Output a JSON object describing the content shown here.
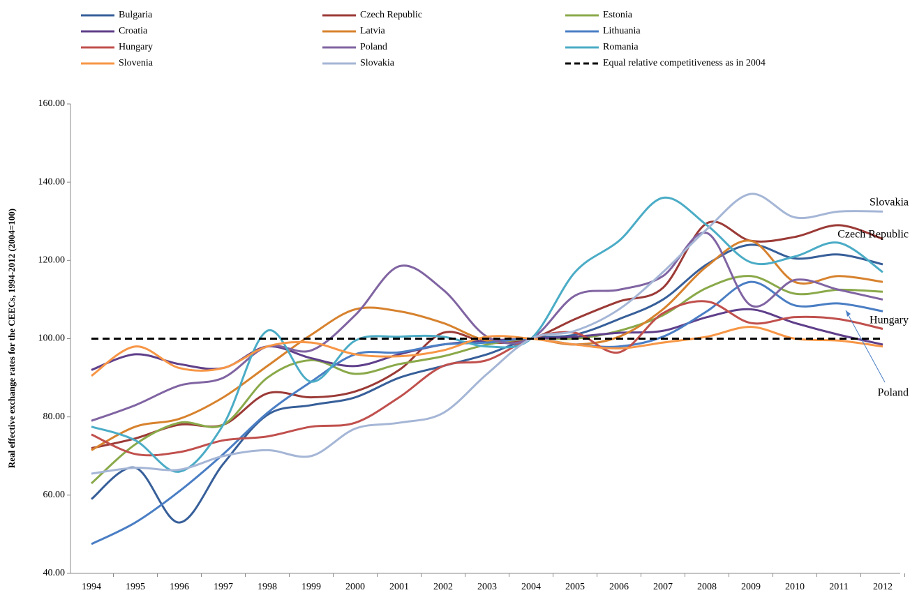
{
  "chart_data": {
    "type": "line",
    "y_label": "Real effective exchange rates for the CEECs, 1994-2012 (2004=100)",
    "categories": [
      "1994",
      "1995",
      "1996",
      "1997",
      "1998",
      "1999",
      "2000",
      "2001",
      "2002",
      "2003",
      "2004",
      "2005",
      "2006",
      "2007",
      "2008",
      "2009",
      "2010",
      "2011",
      "2012"
    ],
    "ylim": [
      40,
      160
    ],
    "yticks": [
      {
        "value": 40,
        "label": "40.00"
      },
      {
        "value": 60,
        "label": "60.00"
      },
      {
        "value": 80,
        "label": "80.00"
      },
      {
        "value": 100,
        "label": "100.00"
      },
      {
        "value": 120,
        "label": "120.00"
      },
      {
        "value": 140,
        "label": "140.00"
      },
      {
        "value": 160,
        "label": "160.00"
      }
    ],
    "series": [
      {
        "name": "Bulgaria",
        "color": "#375f99",
        "values": [
          59,
          67,
          53,
          68,
          80.5,
          83,
          85,
          90,
          93,
          96,
          100,
          101,
          105,
          110,
          119,
          124,
          120.5,
          121.5,
          119
        ]
      },
      {
        "name": "Czech Republic",
        "color": "#9b3a36",
        "values": [
          72,
          74.5,
          78,
          78,
          86,
          85,
          86.5,
          92,
          101.5,
          99,
          100,
          105,
          109.5,
          113,
          129.5,
          125,
          126,
          129,
          125.5
        ]
      },
      {
        "name": "Estonia",
        "color": "#8aa94a",
        "values": [
          63,
          73,
          78.5,
          78,
          90,
          94.5,
          91,
          93.5,
          95.5,
          98.5,
          100,
          100,
          102,
          106,
          113,
          116,
          111.5,
          112.5,
          112
        ]
      },
      {
        "name": "Croatia",
        "color": "#5f3f8a",
        "values": [
          92,
          96,
          93.5,
          92.5,
          98,
          95,
          93,
          96,
          98.5,
          99.5,
          100,
          100.5,
          101.5,
          102,
          105.5,
          107.5,
          104,
          101,
          98.5
        ]
      },
      {
        "name": "Latvia",
        "color": "#d7822e",
        "values": [
          71.5,
          77.5,
          79.5,
          85,
          93,
          101,
          107.5,
          107,
          104,
          99.5,
          100,
          98.5,
          100.5,
          107.5,
          118.5,
          125,
          114.5,
          116,
          114.5
        ]
      },
      {
        "name": "Lithuania",
        "color": "#4a7ec4",
        "values": [
          47.5,
          53,
          61,
          70.5,
          81,
          89,
          96,
          96.5,
          98.5,
          99,
          100,
          98.5,
          98,
          100.5,
          107,
          114.5,
          108.5,
          109,
          107
        ]
      },
      {
        "name": "Hungary",
        "color": "#c0504d",
        "values": [
          75.5,
          70.5,
          71,
          74,
          75,
          77.5,
          78.5,
          85,
          93,
          94.5,
          100,
          101.5,
          96.5,
          106.5,
          109.5,
          104,
          105.5,
          105,
          102.5
        ]
      },
      {
        "name": "Poland",
        "color": "#8064a2",
        "values": [
          79,
          83,
          88,
          90,
          98,
          97,
          106,
          118.5,
          112.5,
          100.5,
          100,
          111,
          112.5,
          116,
          127,
          108.5,
          115,
          112.5,
          110
        ]
      },
      {
        "name": "Romania",
        "color": "#4bacc6",
        "values": [
          77.5,
          74,
          66,
          78,
          102,
          89,
          99.5,
          100.5,
          100.5,
          98,
          100,
          117,
          125,
          136,
          129,
          119.5,
          121,
          124.5,
          117
        ]
      },
      {
        "name": "Slovenia",
        "color": "#f79646",
        "values": [
          90.5,
          98,
          92.5,
          92.5,
          98,
          99,
          96,
          95.5,
          97,
          100.5,
          100,
          98.5,
          97.5,
          99,
          100.5,
          103,
          100,
          99.5,
          98
        ]
      },
      {
        "name": "Slovakia",
        "color": "#a5b6d6",
        "values": [
          65.5,
          67,
          66.5,
          70,
          71.5,
          70,
          77,
          78.5,
          81,
          91,
          100,
          102,
          107.5,
          117,
          128,
          137,
          131,
          132.5,
          132.5
        ]
      },
      {
        "name": "Equal relative competitiveness as in 2004",
        "color": "#000000",
        "dash": true,
        "values": [
          100,
          100,
          100,
          100,
          100,
          100,
          100,
          100,
          100,
          100,
          100,
          100,
          100,
          100,
          100,
          100,
          100,
          100,
          100
        ]
      }
    ],
    "annotations": [
      "Slovakia",
      "Czech Republic",
      "Hungary",
      "Poland"
    ]
  }
}
